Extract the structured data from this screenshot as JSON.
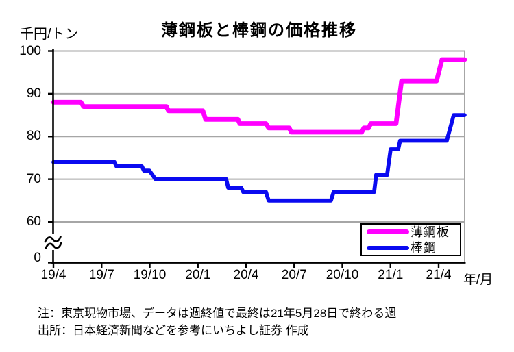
{
  "chart_data": {
    "type": "line",
    "title": "薄鋼板と棒鋼の価格推移",
    "y_axis_unit": "千円/トン",
    "x_axis_unit": "年/月",
    "y_tick_labels": [
      "100",
      "90",
      "80",
      "70",
      "60",
      "0"
    ],
    "y_tick_values": [
      100,
      90,
      80,
      70,
      60,
      0
    ],
    "y_plot_range": [
      60,
      100
    ],
    "y_axis_break": {
      "present": true,
      "symbol": "≈",
      "between": [
        0,
        60
      ]
    },
    "x_tick_labels": [
      "19/4",
      "19/7",
      "19/10",
      "20/1",
      "20/4",
      "20/7",
      "20/10",
      "21/1",
      "21/4"
    ],
    "x_tick_months": [
      0,
      3,
      6,
      9,
      12,
      15,
      18,
      21,
      24
    ],
    "x_range_months": [
      0,
      25.62
    ],
    "x_months_origin": "2019/04",
    "grid": "horizontal-only",
    "legend": {
      "position": "inside-bottom-right",
      "entries": [
        "薄鋼板",
        "棒鋼"
      ]
    },
    "series": [
      {
        "name": "薄鋼板",
        "slug": "thin-steel-sheet",
        "color": "#FF00FF",
        "stroke_width": 6.8,
        "points_months_value": [
          [
            0,
            88
          ],
          [
            1.71,
            88
          ],
          [
            1.88,
            87
          ],
          [
            7.04,
            87
          ],
          [
            7.17,
            86
          ],
          [
            9.31,
            86
          ],
          [
            9.48,
            84
          ],
          [
            11.49,
            84
          ],
          [
            11.61,
            83
          ],
          [
            13.24,
            83
          ],
          [
            13.41,
            82
          ],
          [
            14.69,
            82
          ],
          [
            14.82,
            81
          ],
          [
            19.21,
            81
          ],
          [
            19.34,
            82
          ],
          [
            19.64,
            82
          ],
          [
            19.77,
            83
          ],
          [
            21.35,
            83
          ],
          [
            21.69,
            93
          ],
          [
            23.87,
            93
          ],
          [
            24.21,
            98
          ],
          [
            25.62,
            98
          ]
        ]
      },
      {
        "name": "棒鋼",
        "slug": "steel-bar",
        "color": "#0A0AF0",
        "stroke_width": 5.8,
        "points_months_value": [
          [
            0,
            74
          ],
          [
            3.8,
            74
          ],
          [
            3.93,
            73
          ],
          [
            5.51,
            73
          ],
          [
            5.64,
            72
          ],
          [
            5.98,
            72
          ],
          [
            6.36,
            70
          ],
          [
            10.76,
            70
          ],
          [
            10.89,
            68
          ],
          [
            11.7,
            68
          ],
          [
            11.83,
            67
          ],
          [
            13.24,
            67
          ],
          [
            13.41,
            65
          ],
          [
            17.29,
            65
          ],
          [
            17.46,
            67
          ],
          [
            19.98,
            67
          ],
          [
            20.11,
            71
          ],
          [
            20.79,
            71
          ],
          [
            21.01,
            77
          ],
          [
            21.48,
            77
          ],
          [
            21.6,
            79
          ],
          [
            24.51,
            79
          ],
          [
            24.94,
            85
          ],
          [
            25.62,
            85
          ]
        ]
      }
    ]
  },
  "footnotes": {
    "line1": "注：東京現物市場、データは週終値で最終は21年5月28日で終わる週",
    "line2": "出所：日本経済新聞などを参考にいちよし証券 作成"
  },
  "colors": {
    "grid": "#A6A6A6",
    "axis": "#000000",
    "background": "#FFFFFF"
  }
}
